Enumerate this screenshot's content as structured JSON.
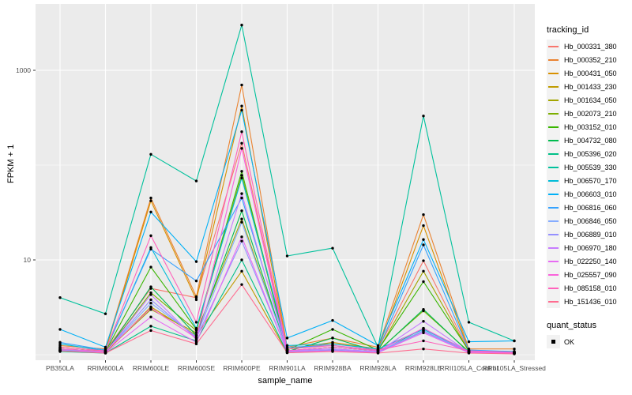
{
  "figure": {
    "x_axis_title": "sample_name",
    "y_axis_title": "FPKM + 1",
    "y_ticks": [
      {
        "label": "10",
        "value": 10
      },
      {
        "label": "1000",
        "value": 1000
      }
    ],
    "panel_bg": "#ebebeb",
    "grid_color": "#ffffff",
    "tick_label_color": "#4d4d4d",
    "point_color": "#000000"
  },
  "legend": {
    "tracking_title": "tracking_id",
    "quant_title": "quant_status",
    "quant_label": "OK"
  },
  "chart_data": {
    "type": "line",
    "x_scale": "categorical",
    "y_scale": "log10",
    "xlabel": "sample_name",
    "ylabel": "FPKM + 1",
    "ylim": [
      1,
      4500
    ],
    "grid": true,
    "legend_position": "right",
    "marker": "black point (quant_status OK) on every value",
    "categories": [
      "PB350LA",
      "RRIM600LA",
      "RRIM600LE",
      "RRIM600SE",
      "RRIM600PE",
      "RRIM901LA",
      "RRIM928BA",
      "RRIM928LA",
      "RRIM928LE",
      "RRII105LA_Control",
      "RRII105LA_Stressed"
    ],
    "series": [
      {
        "name": "Hb_000331_380",
        "color": "#F8766D",
        "values": [
          1.2,
          1.1,
          5.0,
          4.0,
          170,
          1.15,
          1.3,
          1.15,
          9.8,
          1.1,
          1.05
        ]
      },
      {
        "name": "Hb_000352_210",
        "color": "#EA8331",
        "values": [
          1.25,
          1.15,
          45,
          4.1,
          700,
          1.2,
          1.5,
          1.2,
          30,
          1.15,
          1.15
        ]
      },
      {
        "name": "Hb_000431_050",
        "color": "#D89000",
        "values": [
          1.2,
          1.1,
          42,
          3.8,
          420,
          1.15,
          1.35,
          1.15,
          23,
          1.1,
          1.08
        ]
      },
      {
        "name": "Hb_001433_230",
        "color": "#C09B00",
        "values": [
          1.1,
          1.05,
          3.2,
          1.6,
          7.6,
          1.05,
          1.1,
          1.05,
          1.8,
          1.05,
          1.03
        ]
      },
      {
        "name": "Hb_001634_050",
        "color": "#A3A500",
        "values": [
          1.15,
          1.08,
          3.0,
          1.7,
          27,
          1.1,
          1.2,
          1.1,
          7.6,
          1.08,
          1.05
        ]
      },
      {
        "name": "Hb_002073_210",
        "color": "#7CAE00",
        "values": [
          1.12,
          1.06,
          4.5,
          1.8,
          78,
          1.1,
          1.2,
          1.1,
          2.9,
          1.08,
          1.05
        ]
      },
      {
        "name": "Hb_003152_010",
        "color": "#39B600",
        "values": [
          1.15,
          1.08,
          8.4,
          1.85,
          86,
          1.12,
          1.85,
          1.12,
          5.9,
          1.1,
          1.06
        ]
      },
      {
        "name": "Hb_004732_080",
        "color": "#00BB4E",
        "values": [
          1.1,
          1.05,
          5.2,
          1.6,
          33,
          1.08,
          1.5,
          1.08,
          3.0,
          1.06,
          1.04
        ]
      },
      {
        "name": "Hb_005396_020",
        "color": "#00C087",
        "values": [
          1.08,
          1.04,
          2.0,
          1.4,
          10,
          1.05,
          1.12,
          1.05,
          1.9,
          1.05,
          1.03
        ]
      },
      {
        "name": "Hb_005539_330",
        "color": "#00C19C",
        "values": [
          4.0,
          2.7,
          130,
          68,
          3000,
          11,
          13.3,
          1.2,
          330,
          2.2,
          1.4
        ]
      },
      {
        "name": "Hb_006570_170",
        "color": "#00BCD8",
        "values": [
          1.3,
          1.1,
          13.5,
          1.9,
          73,
          1.25,
          1.3,
          1.15,
          1.85,
          1.1,
          1.06
        ]
      },
      {
        "name": "Hb_006603_010",
        "color": "#00B0F6",
        "values": [
          1.85,
          1.2,
          32,
          9.6,
          380,
          1.5,
          2.3,
          1.25,
          16.4,
          1.37,
          1.4
        ]
      },
      {
        "name": "Hb_006816_060",
        "color": "#35A2FF",
        "values": [
          1.35,
          1.12,
          13,
          6.0,
          45,
          1.2,
          1.25,
          1.12,
          14.4,
          1.12,
          1.08
        ]
      },
      {
        "name": "Hb_006846_050",
        "color": "#85ACFF",
        "values": [
          1.15,
          1.06,
          3.5,
          1.55,
          25,
          1.1,
          1.15,
          1.08,
          1.8,
          1.07,
          1.05
        ]
      },
      {
        "name": "Hb_006889_010",
        "color": "#9590FF",
        "values": [
          1.12,
          1.06,
          3.8,
          1.5,
          15.8,
          1.08,
          1.12,
          1.06,
          1.75,
          1.06,
          1.04
        ]
      },
      {
        "name": "Hb_006970_180",
        "color": "#C77CFF",
        "values": [
          1.1,
          1.05,
          4.3,
          1.45,
          50,
          1.1,
          1.15,
          1.07,
          2.25,
          1.06,
          1.04
        ]
      },
      {
        "name": "Hb_022250_140",
        "color": "#E76BF3",
        "values": [
          1.1,
          1.05,
          2.5,
          1.35,
          17.5,
          1.07,
          1.1,
          1.05,
          1.7,
          1.05,
          1.03
        ]
      },
      {
        "name": "Hb_025557_090",
        "color": "#FA62DB",
        "values": [
          1.15,
          1.08,
          3.1,
          1.5,
          150,
          1.1,
          1.2,
          1.1,
          1.9,
          1.08,
          1.05
        ]
      },
      {
        "name": "Hb_085158_010",
        "color": "#FF62BC",
        "values": [
          1.2,
          1.1,
          18,
          2.2,
          225,
          1.15,
          1.25,
          1.12,
          1.4,
          1.1,
          1.06
        ]
      },
      {
        "name": "Hb_151436_010",
        "color": "#FF6C90",
        "values": [
          1.1,
          1.04,
          1.8,
          1.3,
          5.5,
          1.05,
          1.08,
          1.04,
          1.15,
          1.04,
          1.02
        ]
      }
    ]
  }
}
